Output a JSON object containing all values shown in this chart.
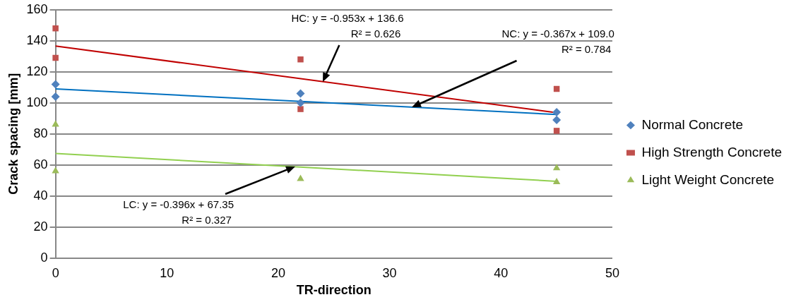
{
  "chart_data": {
    "type": "scatter",
    "xlabel": "TR-direction",
    "ylabel": "Crack spacing [mm]",
    "xlim": [
      0,
      50
    ],
    "xticks": [
      0,
      10,
      20,
      30,
      40,
      50
    ],
    "ylim": [
      0,
      160
    ],
    "yticks": [
      0,
      20,
      40,
      60,
      80,
      100,
      120,
      140,
      160
    ],
    "grid": "y",
    "legend": "right",
    "series": [
      {
        "name": "Normal Concrete",
        "color": "#4f81bd",
        "marker": "diamond",
        "x": [
          0,
          0,
          22,
          22,
          45,
          45
        ],
        "values": [
          112,
          104,
          106,
          100,
          94,
          89
        ]
      },
      {
        "name": "High Strength Concrete",
        "color": "#c0504d",
        "marker": "square",
        "x": [
          0,
          0,
          22,
          22,
          45,
          45
        ],
        "values": [
          148,
          129,
          128,
          96,
          109,
          82
        ]
      },
      {
        "name": "Light Weight Concrete",
        "color": "#9bbb59",
        "marker": "triangle",
        "x": [
          0,
          0,
          22,
          45,
          45
        ],
        "values": [
          86,
          56,
          51,
          58,
          49
        ]
      },
      {
        "type": "line",
        "color": "#0070c0",
        "x": [
          0,
          45
        ],
        "values": [
          109.0,
          92.5
        ]
      },
      {
        "type": "line",
        "color": "#c00000",
        "x": [
          0,
          45
        ],
        "values": [
          136.6,
          93.7
        ]
      },
      {
        "type": "line",
        "color": "#92d050",
        "x": [
          0,
          45
        ],
        "values": [
          67.4,
          49.5
        ]
      }
    ],
    "annotations": [
      {
        "text": "HC: y = -0.953x + 136.6\nR² = 0.626",
        "x": 24,
        "y": 113.7
      },
      {
        "text": "NC: y = -0.367x + 109.0\nR² = 0.784",
        "x": 32,
        "y": 97.3
      },
      {
        "text": "LC: y = -0.396x + 67.35\nR² = 0.327",
        "x": 21.5,
        "y": 58.8
      }
    ]
  }
}
